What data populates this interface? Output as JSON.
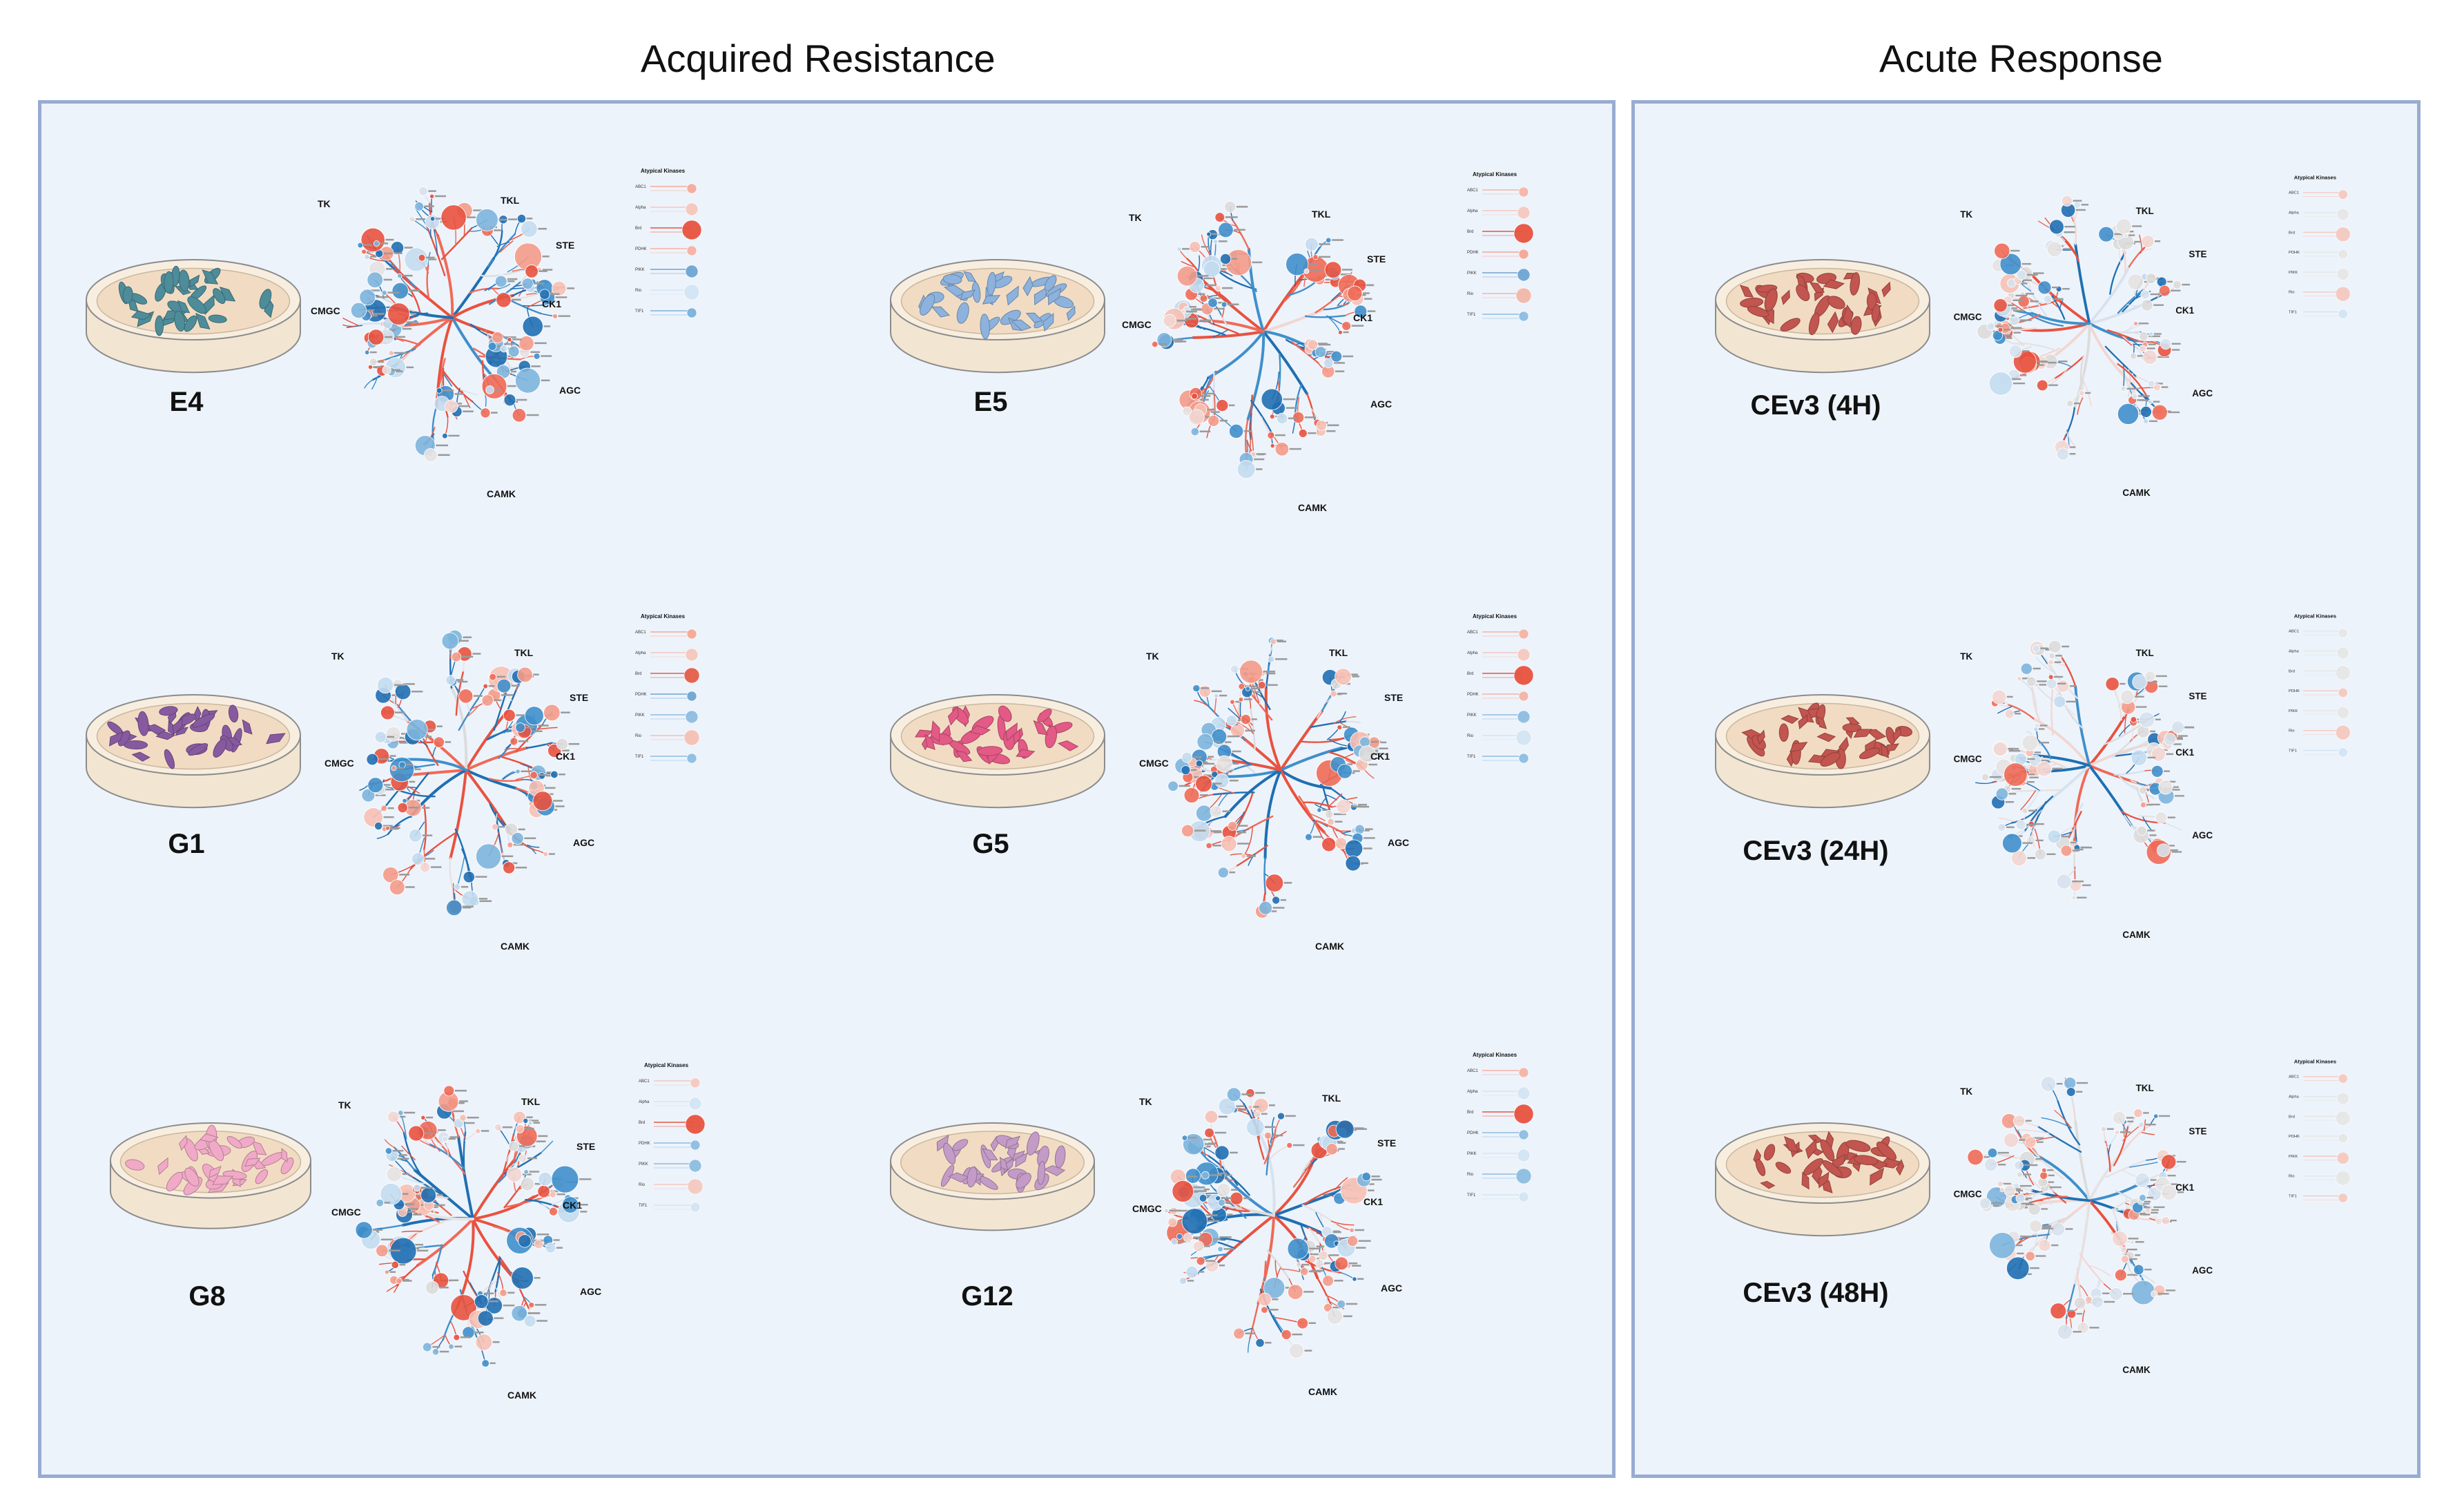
{
  "headers": {
    "acquired": "Acquired Resistance",
    "acute": "Acute Response"
  },
  "tree_labels": {
    "TK": "TK",
    "TKL": "TKL",
    "STE": "STE",
    "CMGC": "CMGC",
    "CK1": "CK1",
    "AGC": "AGC",
    "CAMK": "CAMK"
  },
  "atypical": {
    "title": "Atypical Kinases",
    "rows": [
      "ABC1",
      "Alpha",
      "Brd",
      "PDHK",
      "PIKK",
      "Rio",
      "TIF1"
    ]
  },
  "samples": [
    {
      "id": "e4",
      "label": "E4",
      "dish_color": "#4e8c99",
      "intensity": 0.85,
      "red_bias": 0.45,
      "atypical_colors": [
        "#f6a99a",
        "#f5c6bd",
        "#e8523f",
        "#f7b1a3",
        "#6ea4d2",
        "#d3e4f3",
        "#7ab1da"
      ]
    },
    {
      "id": "e5",
      "label": "E5",
      "dish_color": "#8cb2dd",
      "intensity": 0.95,
      "red_bias": 0.55,
      "atypical_colors": [
        "#f3b5a6",
        "#f4c8bf",
        "#e8523f",
        "#f5a593",
        "#6ea4d2",
        "#f2b6a8",
        "#8dbde0"
      ]
    },
    {
      "id": "g1",
      "label": "G1",
      "dish_color": "#875aa0",
      "intensity": 0.9,
      "red_bias": 0.45,
      "atypical_colors": [
        "#f5a896",
        "#f3c7bc",
        "#e55d48",
        "#6ea4d2",
        "#8dbde0",
        "#f5bfb3",
        "#8dbde0"
      ]
    },
    {
      "id": "g5",
      "label": "G5",
      "dish_color": "#e25a85",
      "intensity": 0.9,
      "red_bias": 0.5,
      "atypical_colors": [
        "#f3b3a5",
        "#f4c8bf",
        "#e8523f",
        "#f3b3a5",
        "#8dbde0",
        "#d3e4f3",
        "#8dbde0"
      ]
    },
    {
      "id": "g8",
      "label": "G8",
      "dish_color": "#f0a9c6",
      "intensity": 0.85,
      "red_bias": 0.5,
      "atypical_colors": [
        "#f4c8bf",
        "#d3e4f3",
        "#e8523f",
        "#8dbde0",
        "#8dbde0",
        "#f4c8bf",
        "#d3e4f3"
      ]
    },
    {
      "id": "g12",
      "label": "G12",
      "dish_color": "#c39bc6",
      "intensity": 0.85,
      "red_bias": 0.5,
      "atypical_colors": [
        "#f3b3a5",
        "#d3e4f3",
        "#e8523f",
        "#8dbde0",
        "#d3e4f3",
        "#8dbde0",
        "#d3e4f3"
      ]
    },
    {
      "id": "c4",
      "label": "CEv3 (4H)",
      "dish_color": "#c2554f",
      "intensity": 0.45,
      "red_bias": 0.5,
      "atypical_colors": [
        "#f4c8bf",
        "#e6e6e6",
        "#f4c8bf",
        "#e6e6e6",
        "#e6e6e6",
        "#f4c8bf",
        "#d3e4f3"
      ]
    },
    {
      "id": "c24",
      "label": "CEv3 (24H)",
      "dish_color": "#c2554f",
      "intensity": 0.4,
      "red_bias": 0.5,
      "atypical_colors": [
        "#e6e6e6",
        "#e6e6e6",
        "#e6e6e6",
        "#f4c8bf",
        "#e6e6e6",
        "#f4c8bf",
        "#d3e4f3"
      ]
    },
    {
      "id": "c48",
      "label": "CEv3 (48H)",
      "dish_color": "#c2554f",
      "intensity": 0.45,
      "red_bias": 0.55,
      "atypical_colors": [
        "#f4c8bf",
        "#e6e6e6",
        "#e6e6e6",
        "#e6e6e6",
        "#f4c8bf",
        "#e6e6e6",
        "#f4c8bf"
      ]
    }
  ]
}
